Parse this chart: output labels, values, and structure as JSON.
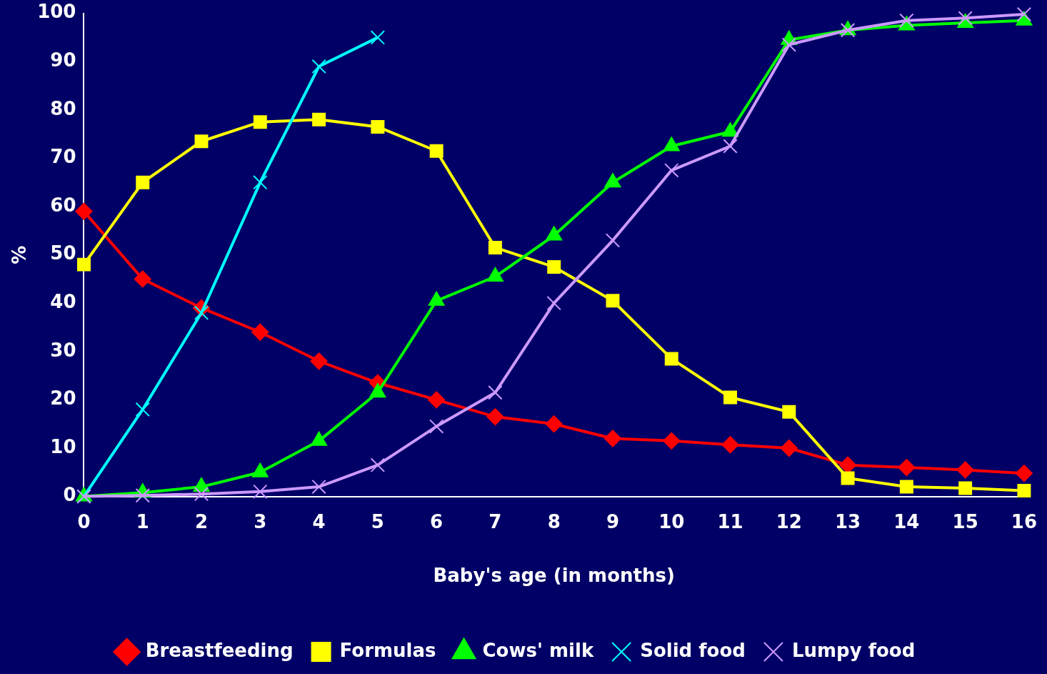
{
  "chart_data": {
    "type": "line",
    "xlabel": "Baby's age (in months)",
    "ylabel": "%",
    "xlim": [
      0,
      16
    ],
    "xticks": [
      0,
      1,
      2,
      3,
      4,
      5,
      6,
      7,
      8,
      9,
      10,
      11,
      12,
      13,
      14,
      15,
      16
    ],
    "ylim": [
      0,
      100
    ],
    "yticks": [
      0,
      10,
      20,
      30,
      40,
      50,
      60,
      70,
      80,
      90,
      100
    ],
    "grid": false,
    "legend": "bottom",
    "line_style": "solid",
    "x": [
      0,
      1,
      2,
      3,
      4,
      5,
      6,
      7,
      8,
      9,
      10,
      11,
      12,
      13,
      14,
      15,
      16
    ],
    "series": [
      {
        "name": "Breastfeeding",
        "color": "#ff0000",
        "marker": "diamond",
        "values": [
          59,
          45,
          39,
          34,
          28,
          23.5,
          20,
          16.5,
          15,
          12,
          11.5,
          10.7,
          10,
          6.5,
          6,
          5.5,
          4.8
        ]
      },
      {
        "name": "Formulas",
        "color": "#ffff00",
        "marker": "square",
        "values": [
          48,
          65,
          73.5,
          77.5,
          78,
          76.5,
          71.5,
          51.5,
          47.5,
          40.5,
          28.5,
          20.5,
          17.5,
          3.8,
          2,
          1.7,
          1.2
        ]
      },
      {
        "name": "Cows' milk",
        "color": "#00ff00",
        "marker": "triangle",
        "values": [
          0,
          0.8,
          2,
          5,
          11.5,
          21.5,
          40.5,
          45.5,
          54,
          65,
          72.5,
          75.5,
          94.5,
          96.5,
          97.5,
          98,
          98.5
        ]
      },
      {
        "name": "Solid food",
        "color": "#00ffff",
        "marker": "cross",
        "x": [
          0,
          1,
          2,
          3,
          4,
          5
        ],
        "values": [
          0,
          18,
          38,
          65,
          89,
          95
        ]
      },
      {
        "name": "Lumpy food",
        "color": "#cc99ff",
        "marker": "cross",
        "values": [
          0,
          0.2,
          0.5,
          1,
          2,
          6.5,
          14.5,
          21.5,
          40,
          53,
          67.5,
          72.5,
          93.5,
          96.5,
          98.5,
          99,
          99.8
        ]
      }
    ]
  }
}
